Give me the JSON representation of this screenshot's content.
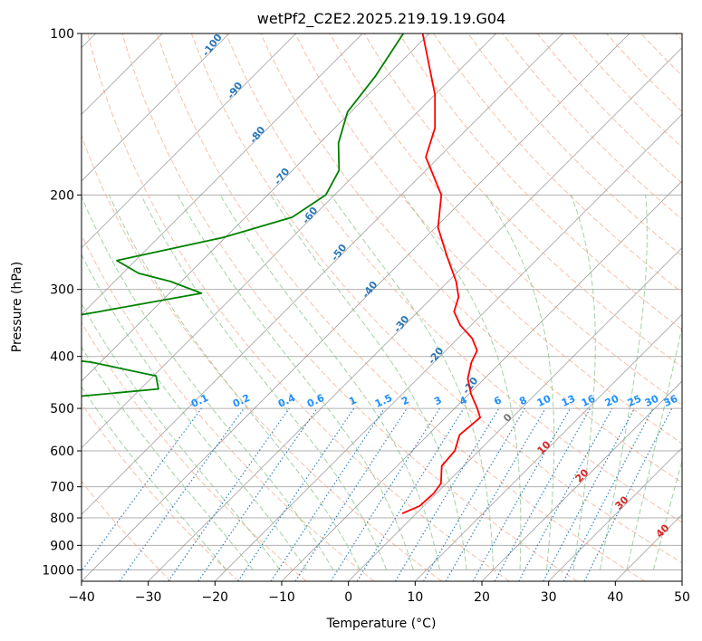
{
  "chart_data": {
    "type": "line",
    "title": "wetPf2_C2E2.2025.219.19.19.G04",
    "xlabel": "Temperature (°C)",
    "ylabel": "Pressure (hPa)",
    "xlim": [
      -40,
      50
    ],
    "ylim": [
      1050,
      100
    ],
    "y_scale": "log",
    "skew": true,
    "grid": true,
    "x_ticks": [
      -40,
      -30,
      -20,
      -10,
      0,
      10,
      20,
      30,
      40,
      50
    ],
    "y_ticks": [
      100,
      200,
      300,
      400,
      500,
      600,
      700,
      800,
      900,
      1000
    ],
    "series": [
      {
        "color": "#ff0000",
        "p": [
          100,
          110,
          130,
          150,
          170,
          200,
          230,
          260,
          290,
          310,
          330,
          350,
          370,
          390,
          410,
          440,
          470,
          500,
          520,
          560,
          600,
          640,
          690,
          720,
          760,
          785
        ],
        "t": [
          -71,
          -67,
          -60,
          -55,
          -52,
          -44,
          -39.6,
          -34,
          -28.8,
          -26.1,
          -24.6,
          -21.6,
          -17.9,
          -15.3,
          -14.4,
          -12.5,
          -9.7,
          -6.6,
          -4.8,
          -5.3,
          -3.6,
          -3.3,
          -0.8,
          -0.4,
          -0.6,
          -2.1
        ]
      },
      {
        "color": "#008000",
        "p": [
          100,
          120,
          140,
          160,
          180,
          200,
          220,
          240,
          265,
          280,
          290,
          305,
          330,
          360,
          385,
          410,
          435,
          460,
          490,
          610,
          635,
          650,
          665,
          680,
          690,
          700,
          740,
          755,
          770
        ],
        "t": [
          -73.9,
          -71.7,
          -70.5,
          -67.2,
          -63,
          -61.3,
          -63,
          -70.3,
          -82.8,
          -77.6,
          -71.6,
          -65.2,
          -77.8,
          -92.2,
          -93.3,
          -71.4,
          -59.6,
          -57.3,
          -78.8,
          -88.1,
          -74.4,
          -75.2,
          -69.2,
          -73.1,
          -86.6,
          -92.7,
          -86.4,
          -74.9,
          -90.7
        ]
      }
    ],
    "dry_adiabat_labels": [
      "-100",
      "-90",
      "-80",
      "-70",
      "-60",
      "-50",
      "-40",
      "-30",
      "-20",
      "-10"
    ],
    "mixing_ratio_labels": [
      "0.1",
      "0.2",
      "0.4",
      "0.6",
      "1",
      "1.5",
      "2",
      "3",
      "4",
      "6",
      "8",
      "10",
      "13",
      "16",
      "20",
      "25",
      "30",
      "36"
    ],
    "moist_adiabat_labels": [
      "0",
      "10",
      "20",
      "30",
      "40"
    ],
    "colors": {
      "temperature": "#ff0000",
      "dewpoint": "#008000",
      "isotherm": "#808080",
      "dry_adiabat": "#f4a582",
      "moist_adiabat": "#86c286",
      "mixing_ratio": "#1f77b4",
      "dry_label": "#2a78b6",
      "mixing_label": "#1e90ff",
      "moist_label": "#d62728",
      "zero_label": "#777777"
    }
  }
}
